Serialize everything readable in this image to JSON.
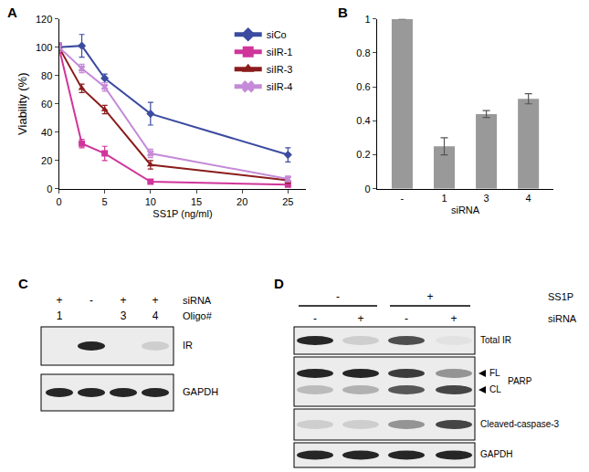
{
  "chart_data": [
    {
      "panel": "A",
      "type": "line",
      "x": [
        0,
        2.5,
        5,
        10,
        25
      ],
      "x_label": "SS1P (ng/ml)",
      "y_label": "Viability (%)",
      "xlim": [
        0,
        27
      ],
      "xticks": [
        0,
        5,
        10,
        15,
        20,
        25
      ],
      "ylim": [
        0,
        120
      ],
      "yticks": [
        0,
        20,
        40,
        60,
        80,
        100,
        120
      ],
      "legend": "upper right",
      "series": [
        {
          "name": "siCo",
          "color": "#3b4ba0",
          "marker": "diamond",
          "line_style": "solid",
          "values": [
            100,
            101,
            78,
            53,
            24
          ],
          "errors": [
            3,
            8,
            3,
            8,
            5
          ]
        },
        {
          "name": "siIR-1",
          "color": "#d0359a",
          "marker": "square",
          "line_style": "solid",
          "values": [
            100,
            32,
            25,
            5,
            3
          ],
          "errors": [
            3,
            3,
            5,
            1,
            1
          ]
        },
        {
          "name": "siIR-3",
          "color": "#8b1c1c",
          "marker": "triangle-up",
          "line_style": "solid",
          "values": [
            100,
            71,
            56,
            17,
            6
          ],
          "errors": [
            2,
            3,
            3,
            3,
            2
          ]
        },
        {
          "name": "siIR-4",
          "color": "#c58ad8",
          "marker": "x",
          "line_style": "solid",
          "values": [
            100,
            85,
            72,
            25,
            7
          ],
          "errors": [
            3,
            3,
            3,
            3,
            2
          ]
        }
      ]
    },
    {
      "panel": "B",
      "type": "bar",
      "x_label": "siRNA",
      "categories": [
        "-",
        "1",
        "3",
        "4"
      ],
      "values": [
        1,
        0.25,
        0.44,
        0.53
      ],
      "errors": [
        0,
        0.05,
        0.02,
        0.03
      ],
      "color": "#999999",
      "ylim": [
        0,
        1
      ],
      "yticks": [
        0,
        0.2,
        0.4,
        0.6,
        0.8,
        1
      ]
    }
  ],
  "blots": [
    {
      "panel": "C",
      "header": [
        {
          "label": "siRNA",
          "lanes": [
            "+",
            "-",
            "+",
            "+"
          ]
        },
        {
          "label": "Oligo#",
          "lanes": [
            "1",
            null,
            "3",
            "4"
          ]
        }
      ],
      "blots": [
        {
          "label": "IR",
          "bands": [
            0,
            1,
            0,
            0.15
          ]
        },
        {
          "label": "GAPDH",
          "bands": [
            1,
            1,
            1,
            1
          ]
        }
      ]
    },
    {
      "panel": "D",
      "header": [
        {
          "label": "SS1P",
          "groups": [
            {
              "text": "-",
              "span": 2
            },
            {
              "text": "+",
              "span": 2
            }
          ]
        },
        {
          "label": "siRNA",
          "lanes": [
            "-",
            "+",
            "-",
            "+"
          ]
        }
      ],
      "blots": [
        {
          "label": "Total IR",
          "bands": [
            1,
            0.15,
            0.8,
            0.05
          ]
        },
        {
          "label": "PARP",
          "rows": [
            {
              "label": "FL",
              "bands": [
                1,
                1,
                0.9,
                0.45
              ]
            },
            {
              "label": "CL",
              "bands": [
                0.25,
                0.3,
                0.75,
                0.85
              ]
            }
          ]
        },
        {
          "label": "Cleaved-caspase-3",
          "bands": [
            0.15,
            0.15,
            0.45,
            0.85
          ]
        },
        {
          "label": "GAPDH",
          "bands": [
            1,
            1,
            1,
            1
          ]
        }
      ]
    }
  ]
}
